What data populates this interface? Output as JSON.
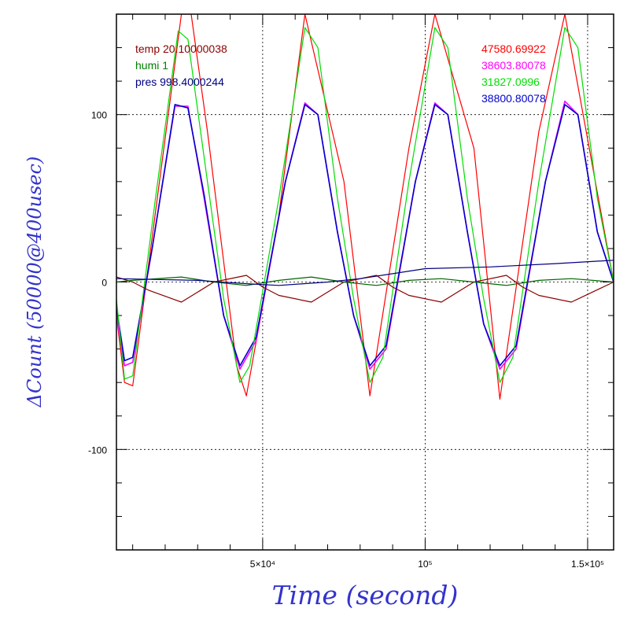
{
  "chart_data": {
    "type": "line",
    "xlabel": "Time (second)",
    "ylabel": "ΔCount (50000@400usec)",
    "xlim": [
      5000,
      158000
    ],
    "ylim": [
      -160,
      160
    ],
    "grid": true,
    "x_ticks": [
      {
        "value": 50000,
        "label": "5×10⁴"
      },
      {
        "value": 100000,
        "label": "10⁵"
      },
      {
        "value": 150000,
        "label": "1.5×10⁵"
      }
    ],
    "y_ticks": [
      {
        "value": 100,
        "label": "100"
      },
      {
        "value": 0,
        "label": "0"
      },
      {
        "value": -100,
        "label": "-100"
      }
    ],
    "legend_left": [
      {
        "text": "temp 20.10000038",
        "color": "#8b0000"
      },
      {
        "text": "humi 1",
        "color": "#008000"
      },
      {
        "text": "pres 998.4000244",
        "color": "#000080"
      }
    ],
    "legend_right": [
      {
        "text": "47580.69922",
        "color": "#ff0000"
      },
      {
        "text": "38603.80078",
        "color": "#ff00ff"
      },
      {
        "text": "31827.0996",
        "color": "#00dd00"
      },
      {
        "text": "38800.80078",
        "color": "#0000cc"
      }
    ],
    "series": [
      {
        "color": "#ff0000",
        "x": [
          5000,
          7500,
          10000,
          25000,
          28000,
          33000,
          42000,
          45000,
          55000,
          63000,
          75000,
          83000,
          95000,
          103000,
          115000,
          123000,
          135000,
          143000,
          158000
        ],
        "y": [
          -20,
          -60,
          -62,
          160,
          160,
          90,
          -50,
          -68,
          40,
          160,
          60,
          -68,
          80,
          160,
          80,
          -70,
          90,
          160,
          0
        ]
      },
      {
        "color": "#ff00ff",
        "x": [
          5000,
          7500,
          10000,
          16000,
          23000,
          27000,
          32000,
          38000,
          43000,
          48000,
          57000,
          63000,
          67000,
          73000,
          78000,
          83000,
          88000,
          97000,
          103000,
          107000,
          113000,
          118000,
          123000,
          128000,
          137000,
          143000,
          147000,
          153000,
          158000
        ],
        "y": [
          -20,
          -50,
          -48,
          20,
          105,
          105,
          50,
          -20,
          -52,
          -35,
          60,
          107,
          100,
          30,
          -20,
          -52,
          -40,
          60,
          107,
          100,
          30,
          -25,
          -52,
          -40,
          60,
          108,
          100,
          30,
          0
        ]
      },
      {
        "color": "#0000cc",
        "x": [
          5000,
          7500,
          10000,
          16000,
          23000,
          27000,
          32000,
          38000,
          43000,
          48000,
          57000,
          63000,
          67000,
          73000,
          78000,
          83000,
          88000,
          97000,
          103000,
          107000,
          113000,
          118000,
          123000,
          128000,
          137000,
          143000,
          147000,
          153000,
          158000
        ],
        "y": [
          -15,
          -47,
          -45,
          20,
          106,
          104,
          52,
          -20,
          -50,
          -33,
          60,
          106,
          100,
          30,
          -20,
          -50,
          -38,
          60,
          106,
          100,
          30,
          -25,
          -50,
          -38,
          60,
          106,
          100,
          30,
          0
        ]
      },
      {
        "color": "#00dd00",
        "x": [
          5000,
          7500,
          10000,
          17000,
          24000,
          27000,
          33000,
          38000,
          43000,
          46000,
          55000,
          63000,
          67000,
          73000,
          78000,
          83000,
          87000,
          95000,
          103000,
          107000,
          113000,
          118000,
          123000,
          127000,
          135000,
          143000,
          147000,
          153000,
          158000
        ],
        "y": [
          -10,
          -58,
          -56,
          50,
          150,
          145,
          60,
          -10,
          -60,
          -50,
          50,
          152,
          140,
          50,
          -10,
          -60,
          -45,
          60,
          152,
          140,
          50,
          -10,
          -60,
          -45,
          60,
          152,
          140,
          50,
          0
        ]
      },
      {
        "color": "#8b0000",
        "x": [
          5000,
          10000,
          15000,
          25000,
          30000,
          35000,
          45000,
          50000,
          55000,
          65000,
          70000,
          75000,
          85000,
          90000,
          95000,
          105000,
          110000,
          115000,
          125000,
          130000,
          135000,
          145000,
          158000
        ],
        "y": [
          3,
          0,
          -5,
          -12,
          -6,
          0,
          4,
          -3,
          -8,
          -12,
          -6,
          0,
          4,
          -3,
          -8,
          -12,
          -6,
          0,
          4,
          -3,
          -8,
          -12,
          0
        ]
      },
      {
        "color": "#006400",
        "x": [
          5000,
          10000,
          25000,
          35000,
          45000,
          55000,
          65000,
          75000,
          85000,
          95000,
          105000,
          115000,
          125000,
          135000,
          145000,
          158000
        ],
        "y": [
          0,
          1,
          3,
          0,
          -2,
          1,
          3,
          0,
          -2,
          1,
          2,
          0,
          -2,
          1,
          2,
          0
        ]
      },
      {
        "color": "#000080",
        "x": [
          5000,
          30000,
          45000,
          55000,
          70000,
          80000,
          90000,
          100000,
          120000,
          140000,
          158000
        ],
        "y": [
          2,
          1,
          -1,
          -2,
          0,
          2,
          5,
          8,
          9,
          11,
          13
        ]
      }
    ]
  }
}
